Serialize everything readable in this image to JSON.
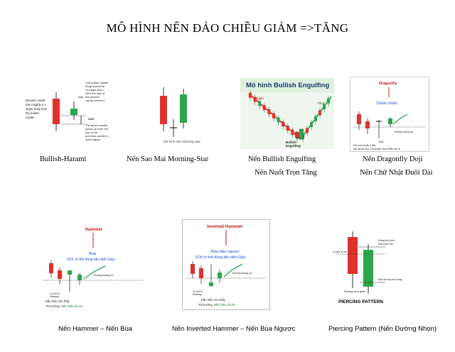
{
  "title": "MÔ HÌNH NẾN ĐẢO CHIỀU GIẢM =>TĂNG",
  "row1": [
    {
      "caption": "Bullish-Harami",
      "img": {
        "bearish_text": [
          "Bearish candle",
          "has roughly 4 x",
          "larger body than",
          "the bullish",
          "candle"
        ],
        "bullish_text": [
          "The bullish candle",
          "body should be",
          "no larger than",
          "25% the size of",
          "the bearish",
          "candle before it"
        ],
        "gap_label": "GAP",
        "green_text": [
          "The green candle",
          "jumps up from the",
          "low of the",
          "previous candle to",
          "open higher"
        ]
      }
    },
    {
      "caption": "Nến Sao Mai Morning-Star",
      "img": {
        "label": "Mô hình nến Morning Star"
      }
    },
    {
      "caption": "Nến Bullish Engulfing",
      "caption2": "Nến Nuốt Trọn Tăng",
      "img": {
        "banner": "Mô hình Bullish Engulfing",
        "left_label": "Giảm",
        "right_label": "Tăng",
        "bottom_label": [
          "Bullish",
          "Engulfing"
        ]
      }
    },
    {
      "caption": "Nến Dragonfly Doji",
      "caption2": "Nến Chữ Nhật Đuôi Dài",
      "img": {
        "top_label": "Dragonfly",
        "sub_label": "Chuẩn chuẩn",
        "line_label": "Đường không cự",
        "low_label": "Đáy",
        "note1": "Giá vượt chuẩn ở đây",
        "note2": "sau khi hồi phục (Thường bị nhận Điểm cầu ít)"
      }
    }
  ],
  "row2": [
    {
      "caption": "Nến Hammer – Nến Búa",
      "img": {
        "top_label": "Hammer",
        "sub_label": "Búa",
        "paren": "(Chỉ có thể dùng tiêu diệt Gấu)",
        "line_label": "Đường không cự",
        "bottom1": "Dấu hiệu cho thấy",
        "bottom2": "Thị trường",
        "bottom2_hl": "Bắt chiều đi Lên",
        "tag1": "Có thể đi",
        "tag2": "Sideway"
      }
    },
    {
      "caption": "Nến Inverted Hammer – Nến Búa Ngược",
      "img": {
        "top_label": "Inverted Hammer",
        "sub_label": "Búa đảo ngược",
        "paren": "(Chỉ có thể dùng tiêu diệt Gấu)",
        "line_label": "Đường không cự",
        "bottom1": "Dấu hiệu cho thấy",
        "bottom2": "Thị trường",
        "bottom2_hl": "Bắt chiều đi Lên",
        "tag1": "Có thể đi",
        "tag2": "Sideway"
      }
    },
    {
      "caption": "Piercing Pattern (Nến Đường Nhọn)",
      "img": {
        "footer": "PIERCING PATTERN",
        "label_left": "12 tiền rõ rồi",
        "label_right": "Đóng cửa trên",
        "label_right2": "nửa thân nến",
        "label_bottom": "Khoảng cách giảm",
        "label_bottom2": "Mở cửa tại mức thấp"
      }
    }
  ],
  "colors": {
    "red": "#e0312b",
    "green": "#2aa84a",
    "darkgreen": "#1f8a3a",
    "blue": "#1a4fd0"
  }
}
